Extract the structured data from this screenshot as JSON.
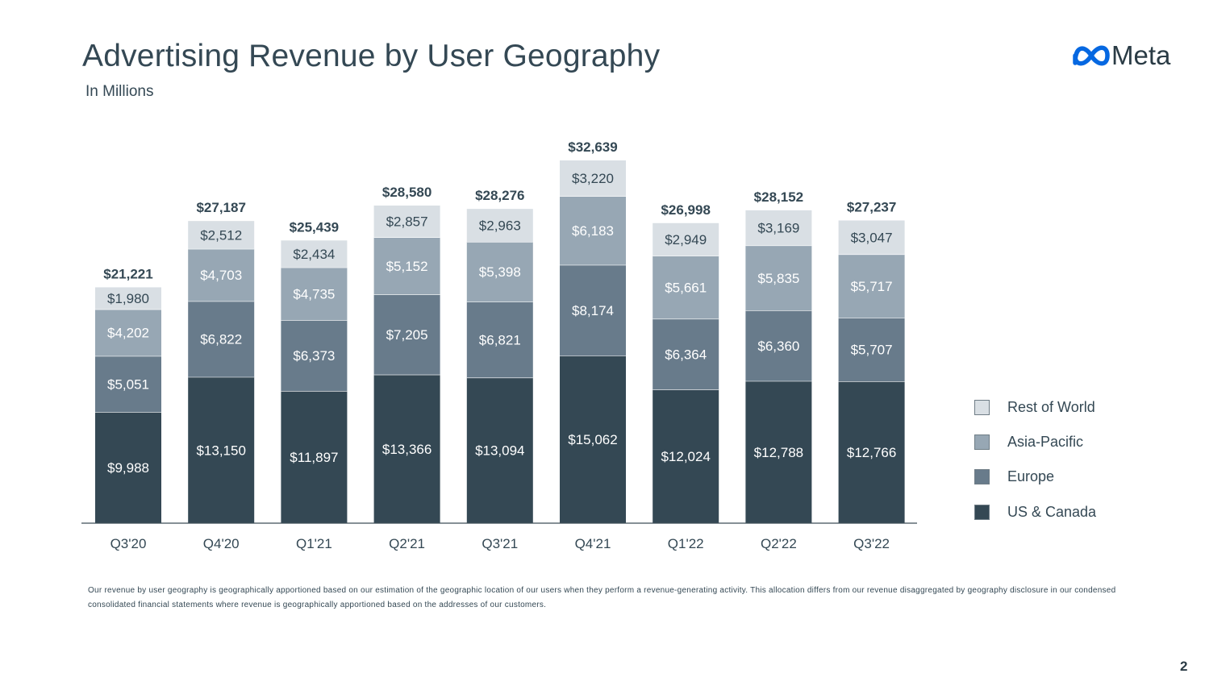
{
  "header": {
    "title": "Advertising Revenue by User Geography",
    "subtitle": "In Millions",
    "logo_text": "Meta"
  },
  "footnote": "Our revenue by user geography is geographically apportioned based on our estimation of the geographic location of our users when they perform a revenue-generating activity. This allocation differs from our revenue disaggregated by geography disclosure in our condensed consolidated financial statements where revenue is geographically apportioned based on the addresses of our customers.",
  "page_number": "2",
  "colors": {
    "us_canada": "#344854",
    "europe": "#687b8b",
    "asia_pacific": "#97a7b4",
    "rest_of_world": "#d9dfe4",
    "text_dark": "#344854",
    "text_light": "#ffffff",
    "logo_blue": "#0668e1"
  },
  "chart_data": {
    "type": "bar",
    "stacked": true,
    "categories": [
      "Q3'20",
      "Q4'20",
      "Q1'21",
      "Q2'21",
      "Q3'21",
      "Q4'21",
      "Q1'22",
      "Q2'22",
      "Q3'22"
    ],
    "series": [
      {
        "name": "US & Canada",
        "color": "#344854",
        "values": [
          9988,
          13150,
          11897,
          13366,
          13094,
          15062,
          12024,
          12788,
          12766
        ],
        "labels": [
          "$9,988",
          "$13,150",
          "$11,897",
          "$13,366",
          "$13,094",
          "$15,062",
          "$12,024",
          "$12,788",
          "$12,766"
        ]
      },
      {
        "name": "Europe",
        "color": "#687b8b",
        "values": [
          5051,
          6822,
          6373,
          7205,
          6821,
          8174,
          6364,
          6360,
          5707
        ],
        "labels": [
          "$5,051",
          "$6,822",
          "$6,373",
          "$7,205",
          "$6,821",
          "$8,174",
          "$6,364",
          "$6,360",
          "$5,707"
        ]
      },
      {
        "name": "Asia-Pacific",
        "color": "#97a7b4",
        "values": [
          4202,
          4703,
          4735,
          5152,
          5398,
          6183,
          5661,
          5835,
          5717
        ],
        "labels": [
          "$4,202",
          "$4,703",
          "$4,735",
          "$5,152",
          "$5,398",
          "$6,183",
          "$5,661",
          "$5,835",
          "$5,717"
        ]
      },
      {
        "name": "Rest of World",
        "color": "#d9dfe4",
        "values": [
          1980,
          2512,
          2434,
          2857,
          2963,
          3220,
          2949,
          3169,
          3047
        ],
        "labels": [
          "$1,980",
          "$2,512",
          "$2,434",
          "$2,857",
          "$2,963",
          "$3,220",
          "$2,949",
          "$3,169",
          "$3,047"
        ]
      }
    ],
    "totals": [
      21221,
      27187,
      25439,
      28580,
      28276,
      32639,
      26998,
      28152,
      27237
    ],
    "total_labels": [
      "$21,221",
      "$27,187",
      "$25,439",
      "$28,580",
      "$28,276",
      "$32,639",
      "$26,998",
      "$28,152",
      "$27,237"
    ],
    "title": "Advertising Revenue by User Geography",
    "subtitle": "In Millions",
    "xlabel": "",
    "ylabel": "",
    "ylim": [
      0,
      34000
    ],
    "grid": false,
    "legend": {
      "placement": "right",
      "entries": [
        "Rest of World",
        "Asia-Pacific",
        "Europe",
        "US & Canada"
      ]
    }
  }
}
